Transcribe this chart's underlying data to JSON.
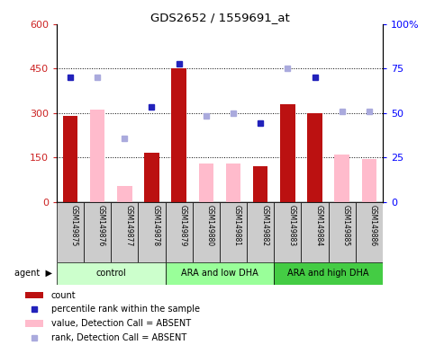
{
  "title": "GDS2652 / 1559691_at",
  "samples": [
    "GSM149875",
    "GSM149876",
    "GSM149877",
    "GSM149878",
    "GSM149879",
    "GSM149880",
    "GSM149881",
    "GSM149882",
    "GSM149883",
    "GSM149884",
    "GSM149885",
    "GSM149886"
  ],
  "groups": [
    {
      "label": "control",
      "color": "#ccffcc",
      "start": 0,
      "end": 3
    },
    {
      "label": "ARA and low DHA",
      "color": "#99ff99",
      "start": 4,
      "end": 7
    },
    {
      "label": "ARA and high DHA",
      "color": "#44cc44",
      "start": 8,
      "end": 11
    }
  ],
  "count_values": [
    290,
    null,
    null,
    165,
    450,
    null,
    null,
    120,
    330,
    300,
    null,
    null
  ],
  "count_absent_values": [
    null,
    310,
    55,
    null,
    null,
    130,
    130,
    null,
    null,
    null,
    160,
    145
  ],
  "percentile_values": [
    420,
    null,
    null,
    320,
    465,
    null,
    null,
    265,
    null,
    420,
    null,
    null
  ],
  "percentile_absent_values": [
    null,
    420,
    215,
    null,
    null,
    290,
    300,
    null,
    450,
    null,
    305,
    305
  ],
  "ylim_left": [
    0,
    600
  ],
  "ylim_right": [
    0,
    100
  ],
  "yticks_left": [
    0,
    150,
    300,
    450,
    600
  ],
  "yticks_right": [
    0,
    25,
    50,
    75,
    100
  ],
  "ytick_labels_left": [
    "0",
    "150",
    "300",
    "450",
    "600"
  ],
  "ytick_labels_right": [
    "0",
    "25",
    "50",
    "75",
    "100%"
  ],
  "hlines": [
    150,
    300,
    450
  ],
  "count_color": "#bb1111",
  "count_absent_color": "#ffbbcc",
  "percentile_color": "#2222bb",
  "percentile_absent_color": "#aaaadd",
  "legend_items": [
    {
      "label": "count",
      "type": "bar",
      "color": "#bb1111"
    },
    {
      "label": "percentile rank within the sample",
      "type": "marker",
      "color": "#2222bb"
    },
    {
      "label": "value, Detection Call = ABSENT",
      "type": "bar",
      "color": "#ffbbcc"
    },
    {
      "label": "rank, Detection Call = ABSENT",
      "type": "marker",
      "color": "#aaaadd"
    }
  ]
}
